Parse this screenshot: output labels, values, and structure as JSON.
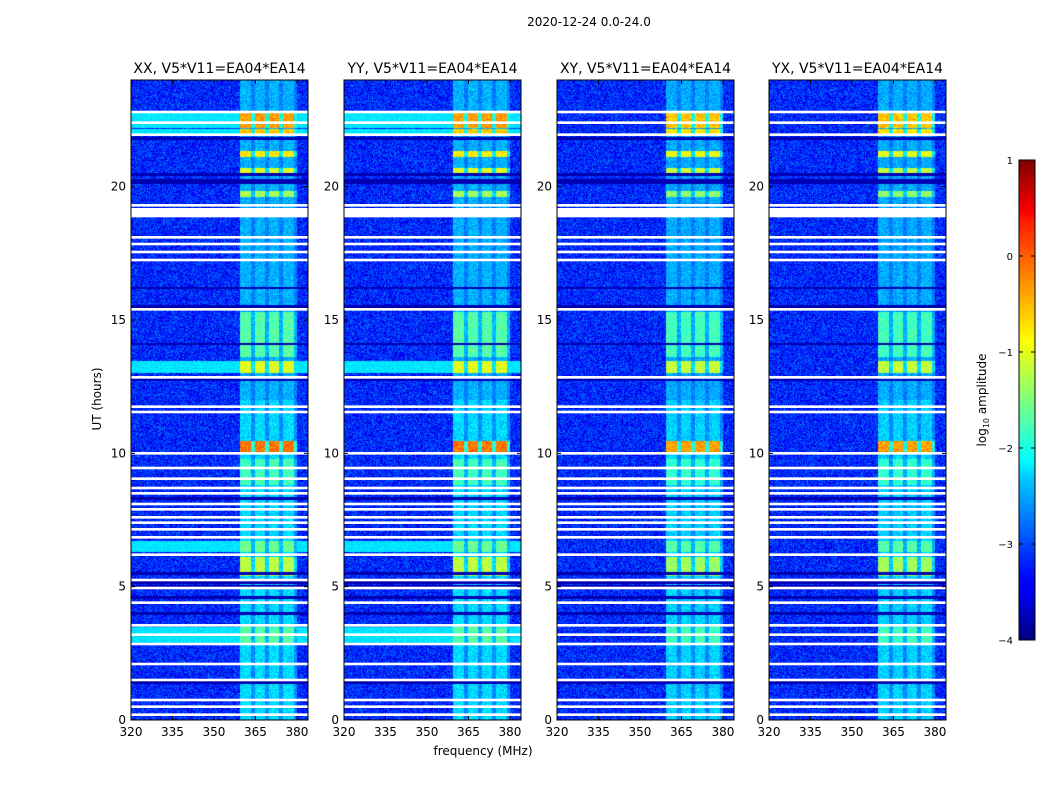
{
  "figure": {
    "suptitle": "2020-12-24 0.0-24.0"
  },
  "chart_data": {
    "type": "heatmap",
    "xlabel": "frequency (MHz)",
    "ylabel": "UT (hours)",
    "xlim": [
      320,
      384
    ],
    "ylim": [
      0,
      24
    ],
    "xticks": [
      320,
      335,
      350,
      365,
      380
    ],
    "yticks": [
      0,
      5,
      10,
      15,
      20
    ],
    "panels": [
      {
        "title": "XX, V5*V11=EA04*EA14"
      },
      {
        "title": "YY, V5*V11=EA04*EA14"
      },
      {
        "title": "XY, V5*V11=EA04*EA14"
      },
      {
        "title": "YX, V5*V11=EA04*EA14"
      }
    ],
    "colorbar": {
      "label": "log10 amplitude",
      "label_base": "log",
      "label_sub": "10",
      "label_rest": " amplitude",
      "range": [
        -4,
        1
      ],
      "ticks": [
        -4,
        -3,
        -2,
        -1,
        0,
        1
      ],
      "tick_labels": [
        "−4",
        "−3",
        "−2",
        "−1",
        "0",
        "1"
      ],
      "colormap": "jet"
    },
    "blank_hours": [
      0.2,
      0.5,
      0.75,
      1.5,
      2.1,
      2.85,
      3.2,
      3.55,
      4.4,
      4.95,
      5.25,
      6.2,
      6.85,
      7.15,
      7.4,
      7.6,
      7.9,
      8.1,
      8.5,
      8.7,
      9.05,
      9.45,
      10.0,
      11.55,
      11.75,
      12.85,
      15.4,
      17.25,
      17.55,
      17.85,
      18.1,
      19.3,
      21.95,
      22.4,
      22.8
    ],
    "blank_bands": [
      [
        18.85,
        19.2
      ]
    ],
    "dark_hours": [
      1.4,
      4.0,
      4.6,
      5.0,
      5.15,
      5.5,
      8.3,
      12.75,
      14.1,
      15.5,
      16.2,
      20.15,
      20.25,
      20.45,
      21.8
    ],
    "rfi_band_mhz": [
      359.5,
      380
    ],
    "rfi_events": [
      {
        "t0": 22.2,
        "t1": 22.85,
        "amp": -0.4,
        "bb": true
      },
      {
        "t0": 21.95,
        "t1": 22.15,
        "amp": -0.6,
        "bb": true
      },
      {
        "t0": 21.1,
        "t1": 21.35,
        "amp": -0.8,
        "bb": false
      },
      {
        "t0": 20.5,
        "t1": 20.7,
        "amp": -1.0,
        "bb": false
      },
      {
        "t0": 19.6,
        "t1": 19.85,
        "amp": -1.3,
        "bb": false
      },
      {
        "t0": 13.0,
        "t1": 13.45,
        "amp": -1.0,
        "bb": true
      },
      {
        "t0": 13.6,
        "t1": 15.3,
        "amp": -1.7,
        "bb": false
      },
      {
        "t0": 10.0,
        "t1": 10.45,
        "amp": -0.2,
        "bb": false
      },
      {
        "t0": 8.8,
        "t1": 9.8,
        "amp": -1.8,
        "bb": false
      },
      {
        "t0": 5.4,
        "t1": 6.1,
        "amp": -1.2,
        "bb": false
      },
      {
        "t0": 6.3,
        "t1": 6.7,
        "amp": -1.6,
        "bb": true
      },
      {
        "t0": 2.9,
        "t1": 3.5,
        "amp": -1.7,
        "bb": true
      },
      {
        "t0": 0.0,
        "t1": 12.0,
        "amp": -2.3,
        "bb": false
      },
      {
        "t0": 12.0,
        "t1": 24.0,
        "amp": -2.5,
        "bb": false
      }
    ]
  }
}
